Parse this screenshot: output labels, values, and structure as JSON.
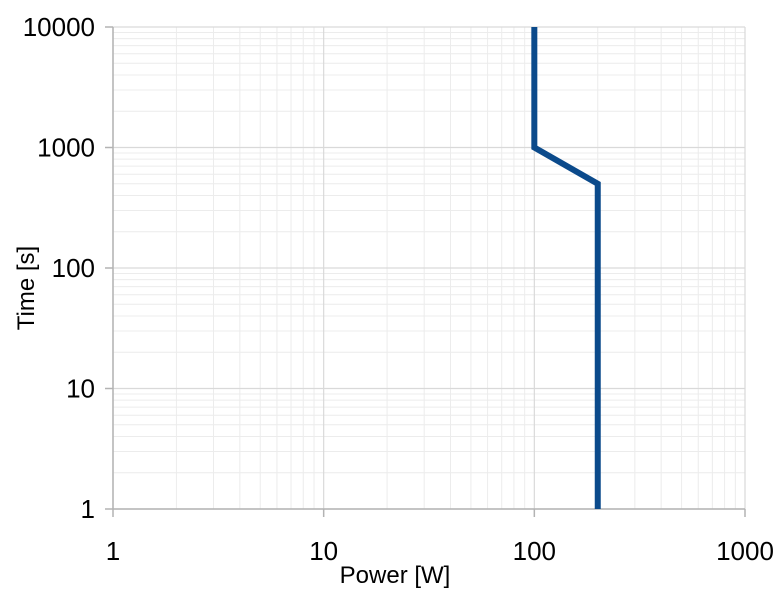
{
  "chart_data": {
    "type": "line",
    "title": "",
    "xlabel": "Power [W]",
    "ylabel": "Time [s]",
    "x_scale": "log",
    "y_scale": "log",
    "xlim": [
      1,
      1000
    ],
    "ylim": [
      1,
      10000
    ],
    "x_ticks": [
      1,
      10,
      100,
      1000
    ],
    "y_ticks": [
      1,
      10,
      100,
      1000,
      10000
    ],
    "x_tick_labels": [
      "1",
      "10",
      "100",
      "1000"
    ],
    "y_tick_labels": [
      "1",
      "10",
      "100",
      "1000",
      "10000"
    ],
    "grid": true,
    "minor_grid": true,
    "legend": "none",
    "series": [
      {
        "points": [
          {
            "x": 100,
            "y": 10000
          },
          {
            "x": 100,
            "y": 1000
          },
          {
            "x": 200,
            "y": 500
          },
          {
            "x": 200,
            "y": 1
          }
        ],
        "color": "#0b4a8b"
      }
    ],
    "colors": {
      "major_grid": "#d9d9d9",
      "minor_grid": "#ececec",
      "axis": "#b3b3b3",
      "line": "#0b4a8b"
    }
  }
}
